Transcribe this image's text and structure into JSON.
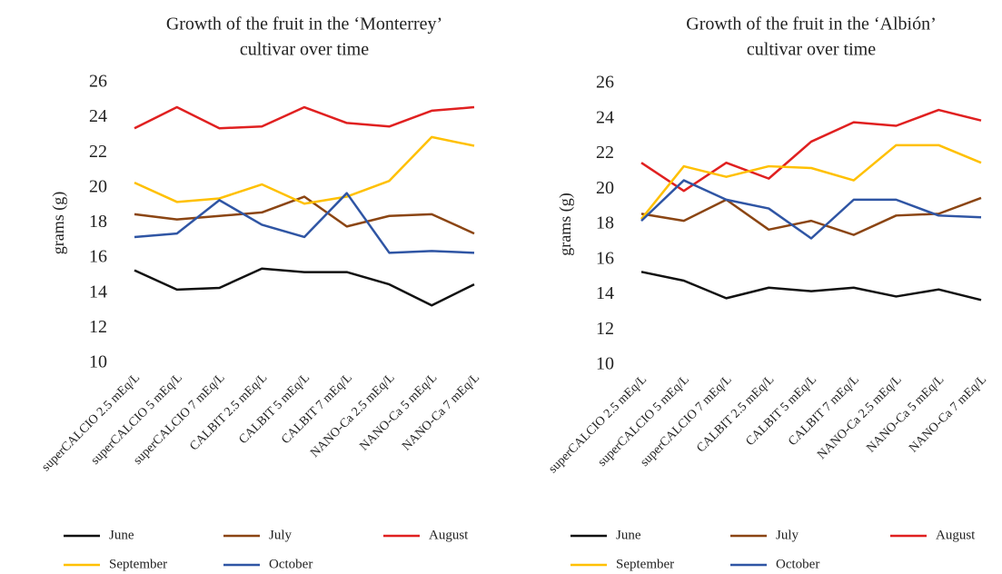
{
  "chart_data": [
    {
      "type": "line",
      "title": [
        "Growth of the fruit in the ‘Monterrey’",
        "cultivar over time"
      ],
      "y_label": "grams (g)",
      "categories": [
        "superCALCIO 2.5 mEq/L",
        "superCALCIO 5 mEq/L",
        "superCALCIO 7 mEq/L",
        "CALBIT 2.5 mEq/L",
        "CALBIT 5 mEq/L",
        "CALBIT 7 mEq/L",
        "NANO-Ca 2.5 mEq/L",
        "NANO-Ca 5 mEq/L",
        "NANO-Ca 7 mEq/L"
      ],
      "series": [
        {
          "name": "June",
          "color": "#111111",
          "values": [
            15.3,
            14.2,
            14.3,
            15.4,
            15.2,
            15.2,
            14.5,
            13.3,
            14.5
          ]
        },
        {
          "name": "July",
          "color": "#8b4513",
          "values": [
            18.5,
            18.2,
            18.4,
            18.6,
            19.5,
            17.8,
            18.4,
            18.5,
            17.4
          ]
        },
        {
          "name": "August",
          "color": "#e02020",
          "values": [
            23.4,
            24.6,
            23.4,
            23.5,
            24.6,
            23.7,
            23.5,
            24.4,
            24.6
          ]
        },
        {
          "name": "September",
          "color": "#ffc000",
          "values": [
            20.3,
            19.2,
            19.4,
            20.2,
            19.1,
            19.5,
            20.4,
            22.9,
            22.4
          ]
        },
        {
          "name": "October",
          "color": "#2f55a4",
          "values": [
            17.2,
            17.4,
            19.3,
            17.9,
            17.2,
            19.7,
            16.3,
            16.4,
            16.3
          ]
        }
      ],
      "ylim": [
        10,
        26
      ],
      "yticks": [
        10,
        12,
        14,
        16,
        18,
        20,
        22,
        24,
        26
      ],
      "grid": false
    },
    {
      "type": "line",
      "title": [
        "Growth of the fruit in the ‘Albión’",
        "cultivar over time"
      ],
      "y_label": "grams (g)",
      "categories": [
        "superCALCIO 2.5 mEq/L",
        "superCALCIO 5 mEq/L",
        "superCALCIO 7 mEq/L",
        "CALBIT 2.5 mEq/L",
        "CALBIT 5 mEq/L",
        "CALBIT 7 mEq/L",
        "NANO-Ca 2.5 mEq/L",
        "NANO-Ca 5 mEq/L",
        "NANO-Ca 7 mEq/L"
      ],
      "series": [
        {
          "name": "June",
          "color": "#111111",
          "values": [
            15.3,
            14.8,
            13.8,
            14.4,
            14.2,
            14.4,
            13.9,
            14.3,
            13.7
          ]
        },
        {
          "name": "July",
          "color": "#8b4513",
          "values": [
            18.6,
            18.2,
            19.4,
            17.7,
            18.2,
            17.4,
            18.5,
            18.6,
            19.5
          ]
        },
        {
          "name": "August",
          "color": "#e02020",
          "values": [
            21.5,
            19.9,
            21.5,
            20.6,
            22.7,
            23.8,
            23.6,
            24.5,
            23.9
          ]
        },
        {
          "name": "September",
          "color": "#ffc000",
          "values": [
            18.3,
            21.3,
            20.7,
            21.3,
            21.2,
            20.5,
            22.5,
            22.5,
            21.5
          ]
        },
        {
          "name": "October",
          "color": "#2f55a4",
          "values": [
            18.2,
            20.5,
            19.4,
            18.9,
            17.2,
            19.4,
            19.4,
            18.5,
            18.4
          ]
        }
      ],
      "ylim": [
        10,
        26
      ],
      "yticks": [
        10,
        12,
        14,
        16,
        18,
        20,
        22,
        24,
        26
      ],
      "grid": false
    }
  ]
}
